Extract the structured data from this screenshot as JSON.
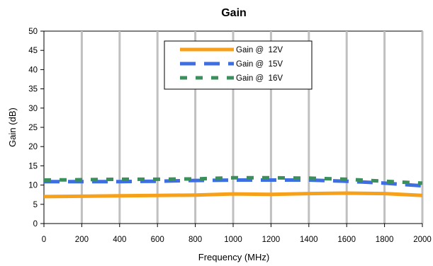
{
  "chart_data": {
    "type": "line",
    "title": "Gain",
    "xlabel": "Frequency (MHz)",
    "ylabel": "Gain (dB)",
    "xlim": [
      0,
      2000
    ],
    "ylim": [
      0,
      50
    ],
    "x_ticks": [
      0,
      200,
      400,
      600,
      800,
      1000,
      1200,
      1400,
      1600,
      1800,
      2000
    ],
    "y_ticks": [
      0,
      5,
      10,
      15,
      20,
      25,
      30,
      35,
      40,
      45,
      50
    ],
    "grid": "vertical",
    "legend_position": "top-center",
    "x": [
      0,
      200,
      400,
      600,
      800,
      1000,
      1200,
      1400,
      1600,
      1800,
      2000
    ],
    "series": [
      {
        "name": "Gain @  12V",
        "color": "#f7a11a",
        "dash": "solid",
        "values": [
          7.0,
          7.1,
          7.2,
          7.3,
          7.4,
          7.7,
          7.6,
          7.8,
          7.9,
          7.8,
          7.3
        ]
      },
      {
        "name": "Gain @  15V",
        "color": "#3d6fe3",
        "dash": "long-dash",
        "values": [
          10.9,
          10.9,
          10.9,
          11.0,
          11.2,
          11.3,
          11.3,
          11.3,
          11.0,
          10.5,
          9.8
        ]
      },
      {
        "name": "Gain @  16V",
        "color": "#3a8f5a",
        "dash": "short-dash",
        "values": [
          11.3,
          11.4,
          11.5,
          11.5,
          11.6,
          11.9,
          11.9,
          11.8,
          11.5,
          11.0,
          10.5
        ]
      }
    ]
  }
}
